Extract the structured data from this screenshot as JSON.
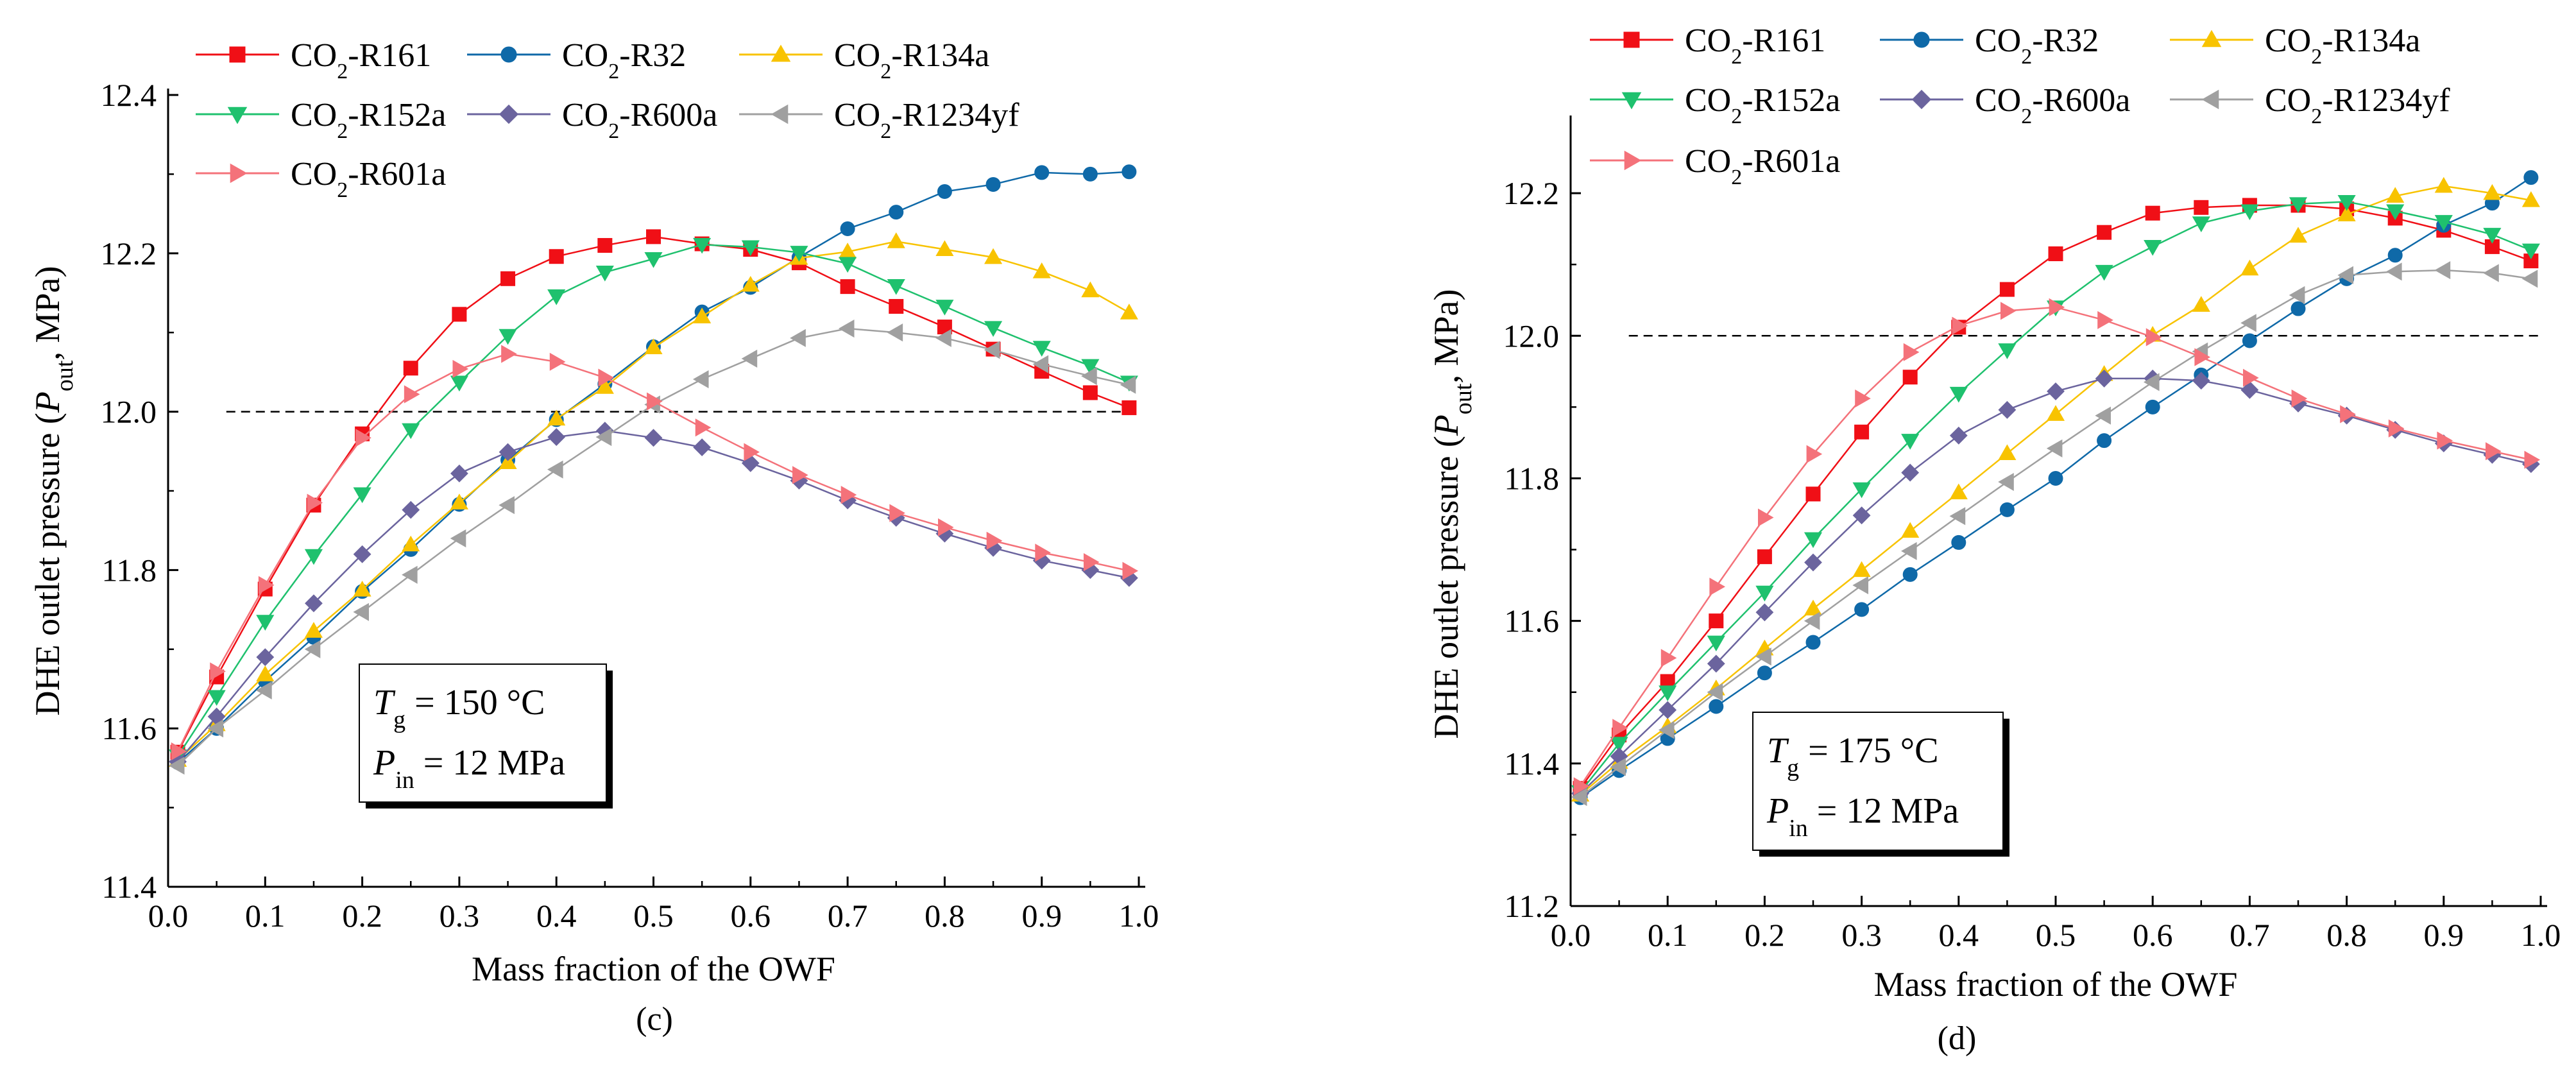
{
  "figure": {
    "caption_c": "(c)",
    "caption_d": "(d)"
  },
  "legend_items": [
    {
      "name": "CO2-R161",
      "main": "CO",
      "sub": "2",
      "rest": "-R161",
      "color": "#f00f16",
      "marker": "square"
    },
    {
      "name": "CO2-R32",
      "main": "CO",
      "sub": "2",
      "rest": "-R32",
      "color": "#0f69a8",
      "marker": "circle"
    },
    {
      "name": "CO2-R134a",
      "main": "CO",
      "sub": "2",
      "rest": "-R134a",
      "color": "#f8c300",
      "marker": "triangle-up"
    },
    {
      "name": "CO2-R152a",
      "main": "CO",
      "sub": "2",
      "rest": "-R152a",
      "color": "#1fc16e",
      "marker": "triangle-down"
    },
    {
      "name": "CO2-R600a",
      "main": "CO",
      "sub": "2",
      "rest": "-R600a",
      "color": "#6b649e",
      "marker": "diamond"
    },
    {
      "name": "CO2-R1234yf",
      "main": "CO",
      "sub": "2",
      "rest": "-R1234yf",
      "color": "#a0a0a0",
      "marker": "triangle-left"
    },
    {
      "name": "CO2-R601a",
      "main": "CO",
      "sub": "2",
      "rest": "-R601a",
      "color": "#f4727a",
      "marker": "triangle-right"
    }
  ],
  "chart_data": [
    {
      "type": "line",
      "panel": "c",
      "xlabel": "Mass fraction of the OWF",
      "ylabel_prefix": "DHE outlet pressure (",
      "ylabel_var": "P",
      "ylabel_sub": "out",
      "ylabel_suffix": ", MPa)",
      "xlim": [
        0,
        1.0
      ],
      "ylim": [
        11.4,
        12.4
      ],
      "xticks": [
        "0.0",
        "0.1",
        "0.2",
        "0.3",
        "0.4",
        "0.5",
        "0.6",
        "0.7",
        "0.8",
        "0.9",
        "1.0"
      ],
      "yticks": [
        "11.4",
        "11.6",
        "11.8",
        "12.0",
        "12.2",
        "12.4"
      ],
      "reference_line": 12.0,
      "annotation": {
        "line1_var": "T",
        "line1_sub": "g",
        "line1_rest": " = 150 °C",
        "line2_var": "P",
        "line2_sub": "in",
        "line2_rest": " = 12 MPa"
      },
      "x": [
        0.01,
        0.05,
        0.1,
        0.15,
        0.2,
        0.25,
        0.3,
        0.35,
        0.4,
        0.45,
        0.5,
        0.55,
        0.6,
        0.65,
        0.7,
        0.75,
        0.8,
        0.85,
        0.9,
        0.95,
        0.99
      ],
      "series": [
        {
          "name": "CO2-R161",
          "values": [
            11.57,
            11.665,
            11.776,
            11.882,
            11.972,
            12.055,
            12.123,
            12.168,
            12.196,
            12.21,
            12.221,
            12.212,
            12.205,
            12.188,
            12.158,
            12.133,
            12.107,
            12.079,
            12.051,
            12.024,
            12.005
          ]
        },
        {
          "name": "CO2-R32",
          "values": [
            11.557,
            11.6,
            11.66,
            11.715,
            11.773,
            11.826,
            11.883,
            11.939,
            11.99,
            12.035,
            12.082,
            12.126,
            12.157,
            12.195,
            12.231,
            12.252,
            12.278,
            12.287,
            12.302,
            12.3,
            12.303
          ]
        },
        {
          "name": "CO2-R134a",
          "values": [
            11.56,
            11.605,
            11.668,
            11.723,
            11.775,
            11.832,
            11.885,
            11.936,
            11.991,
            12.031,
            12.081,
            12.12,
            12.16,
            12.194,
            12.202,
            12.215,
            12.205,
            12.195,
            12.177,
            12.153,
            12.125
          ]
        },
        {
          "name": "CO2-R152a",
          "values": [
            11.565,
            11.64,
            11.735,
            11.818,
            11.896,
            11.977,
            12.037,
            12.096,
            12.146,
            12.176,
            12.193,
            12.211,
            12.208,
            12.201,
            12.187,
            12.159,
            12.133,
            12.106,
            12.081,
            12.058,
            12.037
          ]
        },
        {
          "name": "CO2-R600a",
          "values": [
            11.558,
            11.615,
            11.69,
            11.758,
            11.82,
            11.876,
            11.922,
            11.949,
            11.968,
            11.976,
            11.967,
            11.955,
            11.935,
            11.913,
            11.888,
            11.866,
            11.846,
            11.828,
            11.812,
            11.8,
            11.79
          ]
        },
        {
          "name": "CO2-R1234yf",
          "values": [
            11.553,
            11.6,
            11.648,
            11.7,
            11.747,
            11.794,
            11.84,
            11.882,
            11.927,
            11.968,
            12.009,
            12.041,
            12.067,
            12.093,
            12.105,
            12.1,
            12.093,
            12.078,
            12.06,
            12.045,
            12.034
          ]
        },
        {
          "name": "CO2-R601a",
          "values": [
            11.571,
            11.672,
            11.781,
            11.885,
            11.967,
            12.022,
            12.054,
            12.073,
            12.063,
            12.043,
            12.013,
            11.98,
            11.949,
            11.92,
            11.895,
            11.872,
            11.854,
            11.837,
            11.822,
            11.81,
            11.799
          ]
        }
      ]
    },
    {
      "type": "line",
      "panel": "d",
      "xlabel": "Mass fraction of the OWF",
      "ylabel_prefix": "DHE outlet pressure (",
      "ylabel_var": "P",
      "ylabel_sub": "out",
      "ylabel_suffix": ", MPa)",
      "xlim": [
        0,
        1.0
      ],
      "ylim": [
        11.2,
        12.3
      ],
      "xticks": [
        "0.0",
        "0.1",
        "0.2",
        "0.3",
        "0.4",
        "0.5",
        "0.6",
        "0.7",
        "0.8",
        "0.9",
        "1.0"
      ],
      "yticks": [
        "11.2",
        "11.4",
        "11.6",
        "11.8",
        "12.0",
        "12.2"
      ],
      "reference_line": 12.0,
      "annotation": {
        "line1_var": "T",
        "line1_sub": "g",
        "line1_rest": " = 175 °C",
        "line2_var": "P",
        "line2_sub": "in",
        "line2_rest": " = 12 MPa"
      },
      "x": [
        0.01,
        0.05,
        0.1,
        0.15,
        0.2,
        0.25,
        0.3,
        0.35,
        0.4,
        0.45,
        0.5,
        0.55,
        0.6,
        0.65,
        0.7,
        0.75,
        0.8,
        0.85,
        0.9,
        0.95,
        0.99
      ],
      "series": [
        {
          "name": "CO2-R161",
          "values": [
            11.365,
            11.44,
            11.515,
            11.6,
            11.69,
            11.778,
            11.865,
            11.942,
            12.012,
            12.065,
            12.115,
            12.145,
            12.172,
            12.18,
            12.183,
            12.183,
            12.178,
            12.165,
            12.148,
            12.125,
            12.105
          ]
        },
        {
          "name": "CO2-R32",
          "values": [
            11.352,
            11.39,
            11.435,
            11.48,
            11.527,
            11.57,
            11.616,
            11.665,
            11.71,
            11.756,
            11.8,
            11.853,
            11.9,
            11.945,
            11.993,
            12.038,
            12.08,
            12.113,
            12.155,
            12.186,
            12.222
          ]
        },
        {
          "name": "CO2-R134a",
          "values": [
            11.356,
            11.402,
            11.452,
            11.505,
            11.561,
            11.617,
            11.671,
            11.726,
            11.78,
            11.835,
            11.89,
            11.946,
            12.001,
            12.043,
            12.094,
            12.14,
            12.17,
            12.196,
            12.21,
            12.2,
            12.19
          ]
        },
        {
          "name": "CO2-R152a",
          "values": [
            11.36,
            11.428,
            11.5,
            11.57,
            11.64,
            11.715,
            11.785,
            11.853,
            11.919,
            11.98,
            12.04,
            12.09,
            12.125,
            12.158,
            12.175,
            12.185,
            12.188,
            12.175,
            12.16,
            12.142,
            12.12
          ]
        },
        {
          "name": "CO2-R600a",
          "values": [
            11.358,
            11.41,
            11.475,
            11.54,
            11.612,
            11.682,
            11.748,
            11.808,
            11.86,
            11.896,
            11.922,
            11.94,
            11.94,
            11.937,
            11.924,
            11.905,
            11.888,
            11.868,
            11.849,
            11.833,
            11.82
          ]
        },
        {
          "name": "CO2-R1234yf",
          "values": [
            11.353,
            11.395,
            11.447,
            11.5,
            11.55,
            11.6,
            11.65,
            11.698,
            11.747,
            11.795,
            11.842,
            11.888,
            11.935,
            11.978,
            12.018,
            12.057,
            12.085,
            12.09,
            12.092,
            12.088,
            12.08
          ]
        },
        {
          "name": "CO2-R601a",
          "values": [
            11.368,
            11.45,
            11.548,
            11.648,
            11.745,
            11.834,
            11.912,
            11.977,
            12.014,
            12.035,
            12.04,
            12.022,
            11.998,
            11.97,
            11.941,
            11.912,
            11.89,
            11.87,
            11.853,
            11.838,
            11.826
          ]
        }
      ]
    }
  ]
}
